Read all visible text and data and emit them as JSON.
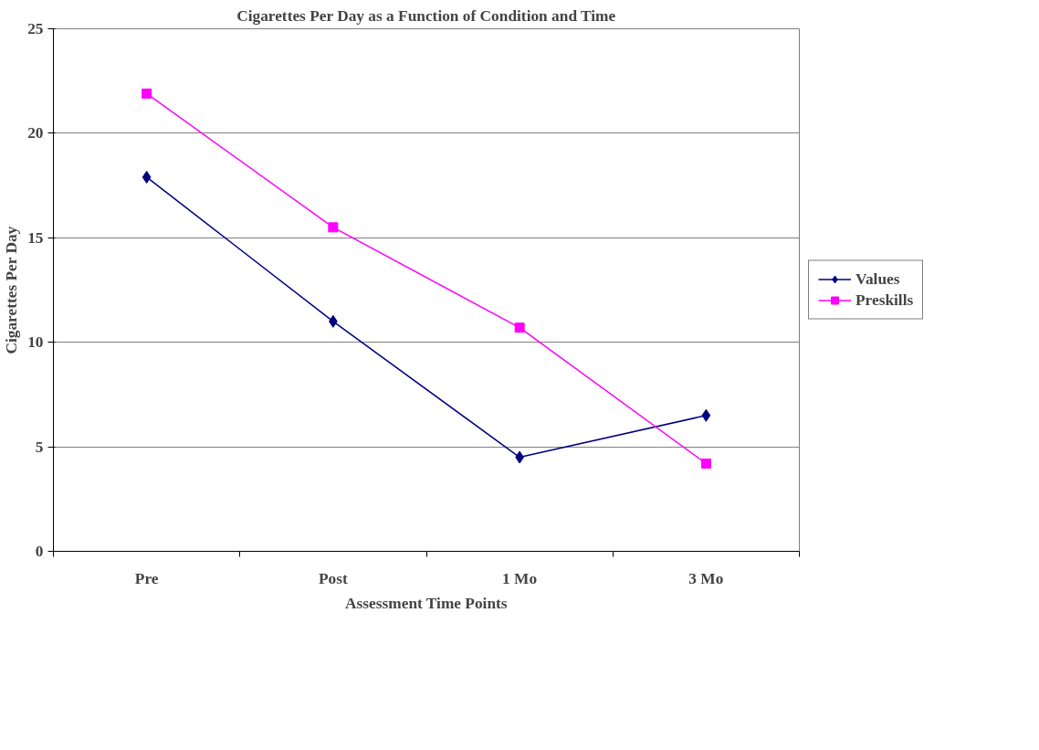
{
  "chart_data": {
    "type": "line",
    "title": "Cigarettes Per Day as a Function of Condition and Time",
    "xlabel": "Assessment Time Points",
    "ylabel": "Cigarettes Per Day",
    "categories": [
      "Pre",
      "Post",
      "1 Mo",
      "3 Mo"
    ],
    "series": [
      {
        "name": "Values",
        "color": "#000080",
        "marker": "diamond",
        "values": [
          17.9,
          11.0,
          4.5,
          6.5
        ]
      },
      {
        "name": "Preskills",
        "color": "#ff00ff",
        "marker": "square",
        "values": [
          21.9,
          15.5,
          10.7,
          4.2
        ]
      }
    ],
    "ylim": [
      0,
      25
    ],
    "yticks": [
      0,
      5,
      10,
      15,
      20,
      25
    ],
    "grid": "y",
    "legend": "right",
    "line_style": "solid"
  }
}
